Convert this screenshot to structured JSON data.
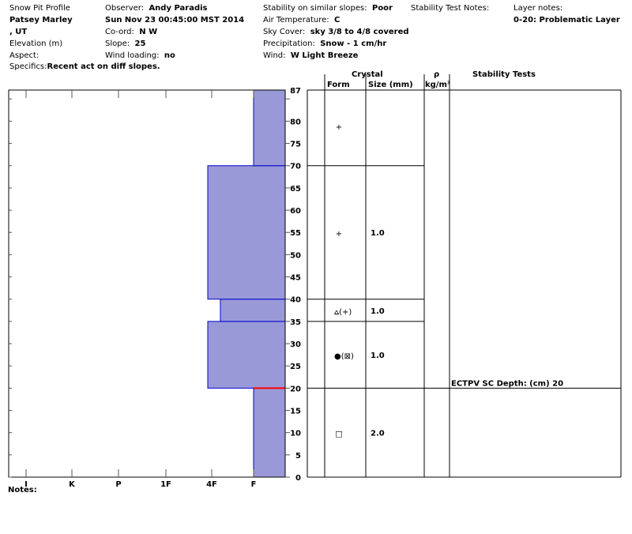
{
  "header": {
    "title": "Snow Pit Profile",
    "name": "Patsey Marley",
    "location": ", UT",
    "elevation_label": "Elevation (m)",
    "aspect_label": "Aspect:",
    "specifics_label": "Specifics:",
    "specifics_value": "Recent act on diff slopes.",
    "observer_label": "Observer:",
    "observer_value": "Andy Paradis",
    "datetime": "Sun Nov 23 00:45:00 MST 2014",
    "coord_label": "Co-ord:",
    "coord_value": "N  W",
    "slope_label": "Slope:",
    "slope_value": "25",
    "wind_loading_label": "Wind loading:",
    "wind_loading_value": "no",
    "stability_label": "Stability on similar slopes:",
    "stability_value": "Poor",
    "air_temp_label": "Air Temperature:",
    "air_temp_value": "C",
    "sky_label": "Sky Cover:",
    "sky_value": "sky 3/8 to 4/8 covered",
    "precip_label": "Precipitation:",
    "precip_value": "Snow - 1 cm/hr",
    "wind_label": "Wind:",
    "wind_value": "W Light Breeze",
    "stability_notes_label": "Stability Test Notes:",
    "layer_notes_label": "Layer notes:",
    "layer_notes_value": "0-20: Problematic Layer"
  },
  "columns": {
    "crystal": "Crystal",
    "form": "Form",
    "size": "Size (mm)",
    "density_symbol": "ρ",
    "density_unit": "kg/m³",
    "stability_tests": "Stability Tests"
  },
  "notes_label": "Notes:",
  "colors": {
    "fill": "#9999d8",
    "border": "#0000cc",
    "marker": "#ff0000"
  },
  "chart_data": {
    "type": "bar",
    "orientation": "horizontal",
    "x_categories": [
      "I",
      "K",
      "P",
      "1F",
      "4F",
      "F"
    ],
    "ylim": [
      0,
      87
    ],
    "y_ticks": [
      0,
      5,
      10,
      15,
      20,
      25,
      30,
      35,
      40,
      45,
      50,
      55,
      60,
      65,
      70,
      75,
      80,
      87
    ],
    "layers": [
      {
        "bottom": 0,
        "top": 20,
        "hardness": "F",
        "form": "square",
        "size": "2.0"
      },
      {
        "bottom": 20,
        "top": 35,
        "hardness": "4F",
        "form": "dot-paren-box",
        "size": "1.0"
      },
      {
        "bottom": 35,
        "top": 40,
        "hardness": "4F-",
        "form": "surface-hoar",
        "size": "1.0"
      },
      {
        "bottom": 40,
        "top": 70,
        "hardness": "4F",
        "form": "plus",
        "size": "1.0"
      },
      {
        "bottom": 70,
        "top": 87,
        "hardness": "F",
        "form": "plus",
        "size": ""
      }
    ],
    "hardness_positions": {
      "F": 0,
      "4F-": 0.725,
      "4F": 1
    },
    "stability_tests": [
      {
        "depth": 20,
        "text": "ECTPV SC Depth: (cm) 20"
      }
    ],
    "problem_depth": 20
  }
}
